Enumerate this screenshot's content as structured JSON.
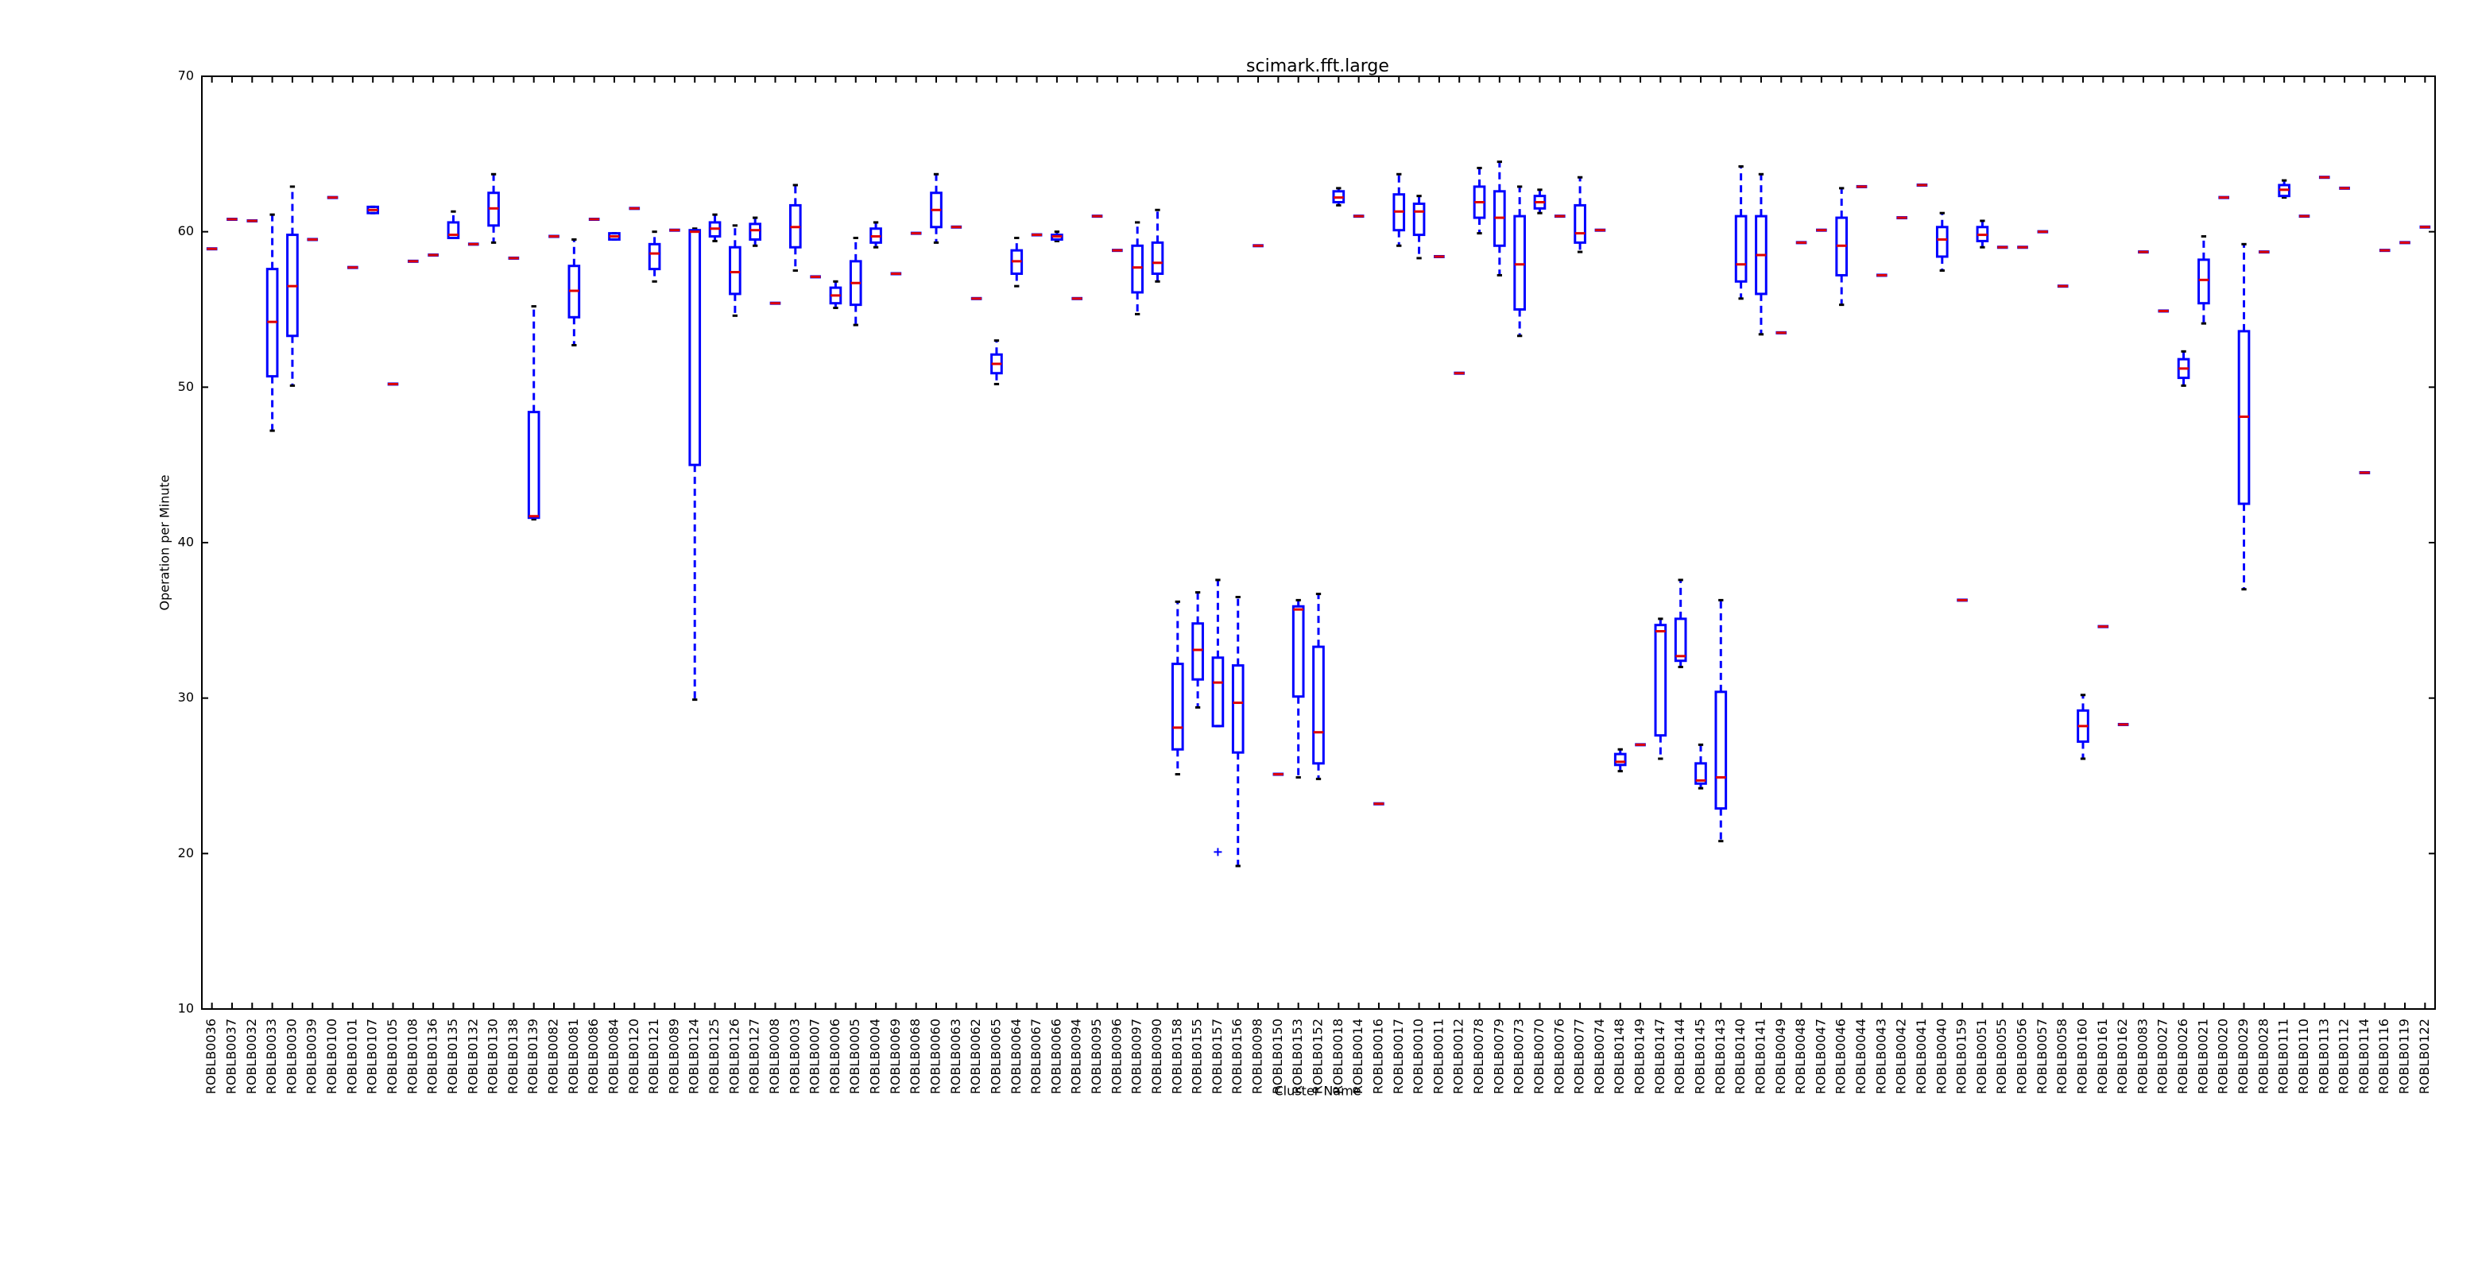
{
  "chart_data": {
    "type": "box",
    "title": "scimark.fft.large",
    "xlabel": "Cluster Name",
    "ylabel": "Operation per Minute",
    "ylim": [
      10,
      70
    ],
    "yticks": [
      10,
      20,
      30,
      40,
      50,
      60,
      70
    ],
    "categories": [
      "ROBLB0036",
      "ROBLB0037",
      "ROBLB0032",
      "ROBLB0033",
      "ROBLB0030",
      "ROBLB0039",
      "ROBLB0100",
      "ROBLB0101",
      "ROBLB0107",
      "ROBLB0105",
      "ROBLB0108",
      "ROBLB0136",
      "ROBLB0135",
      "ROBLB0132",
      "ROBLB0130",
      "ROBLB0138",
      "ROBLB0139",
      "ROBLB0082",
      "ROBLB0081",
      "ROBLB0086",
      "ROBLB0084",
      "ROBLB0120",
      "ROBLB0121",
      "ROBLB0089",
      "ROBLB0124",
      "ROBLB0125",
      "ROBLB0126",
      "ROBLB0127",
      "ROBLB0008",
      "ROBLB0003",
      "ROBLB0007",
      "ROBLB0006",
      "ROBLB0005",
      "ROBLB0004",
      "ROBLB0069",
      "ROBLB0068",
      "ROBLB0060",
      "ROBLB0063",
      "ROBLB0062",
      "ROBLB0065",
      "ROBLB0064",
      "ROBLB0067",
      "ROBLB0066",
      "ROBLB0094",
      "ROBLB0095",
      "ROBLB0096",
      "ROBLB0097",
      "ROBLB0090",
      "ROBLB0158",
      "ROBLB0155",
      "ROBLB0157",
      "ROBLB0156",
      "ROBLB0098",
      "ROBLB0150",
      "ROBLB0153",
      "ROBLB0152",
      "ROBLB0018",
      "ROBLB0014",
      "ROBLB0016",
      "ROBLB0017",
      "ROBLB0010",
      "ROBLB0011",
      "ROBLB0012",
      "ROBLB0078",
      "ROBLB0079",
      "ROBLB0073",
      "ROBLB0070",
      "ROBLB0076",
      "ROBLB0077",
      "ROBLB0074",
      "ROBLB0148",
      "ROBLB0149",
      "ROBLB0147",
      "ROBLB0144",
      "ROBLB0145",
      "ROBLB0143",
      "ROBLB0140",
      "ROBLB0141",
      "ROBLB0049",
      "ROBLB0048",
      "ROBLB0047",
      "ROBLB0046",
      "ROBLB0044",
      "ROBLB0043",
      "ROBLB0042",
      "ROBLB0041",
      "ROBLB0040",
      "ROBLB0159",
      "ROBLB0051",
      "ROBLB0055",
      "ROBLB0056",
      "ROBLB0057",
      "ROBLB0058",
      "ROBLB0160",
      "ROBLB0161",
      "ROBLB0162",
      "ROBLB0083",
      "ROBLB0027",
      "ROBLB0026",
      "ROBLB0021",
      "ROBLB0020",
      "ROBLB0029",
      "ROBLB0028",
      "ROBLB0111",
      "ROBLB0110",
      "ROBLB0113",
      "ROBLB0112",
      "ROBLB0114",
      "ROBLB0116",
      "ROBLB0119",
      "ROBLB0122"
    ],
    "boxes": [
      {
        "median": 58.9
      },
      {
        "median": 60.8
      },
      {
        "median": 60.7
      },
      {
        "min": 47.2,
        "q1": 50.7,
        "median": 54.2,
        "q3": 57.6,
        "max": 61.1
      },
      {
        "min": 50.1,
        "q1": 53.3,
        "median": 56.5,
        "q3": 59.8,
        "max": 62.9
      },
      {
        "median": 59.5
      },
      {
        "median": 62.2
      },
      {
        "median": 57.7
      },
      {
        "min": 61.2,
        "q1": 61.2,
        "median": 61.4,
        "q3": 61.6,
        "max": 61.6
      },
      {
        "median": 50.2
      },
      {
        "median": 58.1
      },
      {
        "median": 58.5
      },
      {
        "min": 59.6,
        "q1": 59.6,
        "median": 59.8,
        "q3": 60.6,
        "max": 61.3
      },
      {
        "median": 59.2
      },
      {
        "min": 59.3,
        "q1": 60.4,
        "median": 61.5,
        "q3": 62.5,
        "max": 63.7
      },
      {
        "median": 58.3
      },
      {
        "min": 41.5,
        "q1": 41.6,
        "median": 41.7,
        "q3": 48.4,
        "max": 55.2
      },
      {
        "median": 59.7
      },
      {
        "min": 52.7,
        "q1": 54.5,
        "median": 56.2,
        "q3": 57.8,
        "max": 59.5
      },
      {
        "median": 60.8
      },
      {
        "min": 59.5,
        "q1": 59.5,
        "median": 59.7,
        "q3": 59.9,
        "max": 59.9
      },
      {
        "median": 61.5
      },
      {
        "min": 56.8,
        "q1": 57.6,
        "median": 58.6,
        "q3": 59.2,
        "max": 60.0
      },
      {
        "median": 60.1
      },
      {
        "min": 29.9,
        "q1": 45.0,
        "median": 60.0,
        "q3": 60.1,
        "max": 60.2
      },
      {
        "min": 59.4,
        "q1": 59.7,
        "median": 60.2,
        "q3": 60.6,
        "max": 61.1
      },
      {
        "min": 54.6,
        "q1": 56.0,
        "median": 57.4,
        "q3": 59.0,
        "max": 60.4
      },
      {
        "min": 59.1,
        "q1": 59.5,
        "median": 60.1,
        "q3": 60.5,
        "max": 60.9
      },
      {
        "median": 55.4
      },
      {
        "min": 57.5,
        "q1": 59.0,
        "median": 60.3,
        "q3": 61.7,
        "max": 63.0
      },
      {
        "median": 57.1
      },
      {
        "min": 55.1,
        "q1": 55.4,
        "median": 55.9,
        "q3": 56.4,
        "max": 56.8
      },
      {
        "min": 54.0,
        "q1": 55.3,
        "median": 56.7,
        "q3": 58.1,
        "max": 59.6
      },
      {
        "min": 59.0,
        "q1": 59.3,
        "median": 59.7,
        "q3": 60.2,
        "max": 60.6
      },
      {
        "median": 57.3
      },
      {
        "median": 59.9
      },
      {
        "min": 59.3,
        "q1": 60.3,
        "median": 61.4,
        "q3": 62.5,
        "max": 63.7
      },
      {
        "median": 60.3
      },
      {
        "median": 55.7
      },
      {
        "min": 50.2,
        "q1": 50.9,
        "median": 51.5,
        "q3": 52.1,
        "max": 53.0
      },
      {
        "min": 56.5,
        "q1": 57.3,
        "median": 58.1,
        "q3": 58.8,
        "max": 59.6
      },
      {
        "median": 59.8
      },
      {
        "min": 59.4,
        "q1": 59.5,
        "median": 59.7,
        "q3": 59.8,
        "max": 60.0
      },
      {
        "median": 55.7
      },
      {
        "median": 61.0
      },
      {
        "median": 58.8
      },
      {
        "min": 54.7,
        "q1": 56.1,
        "median": 57.7,
        "q3": 59.1,
        "max": 60.6
      },
      {
        "min": 56.8,
        "q1": 57.3,
        "median": 58.0,
        "q3": 59.3,
        "max": 61.4
      },
      {
        "min": 25.1,
        "q1": 26.7,
        "median": 28.1,
        "q3": 32.2,
        "max": 36.2
      },
      {
        "min": 29.4,
        "q1": 31.2,
        "median": 33.1,
        "q3": 34.8,
        "max": 36.8
      },
      {
        "min": 28.2,
        "q1": 28.2,
        "median": 31.0,
        "q3": 32.6,
        "max": 37.6,
        "fliers": [
          20.1
        ]
      },
      {
        "min": 19.2,
        "q1": 26.5,
        "median": 29.7,
        "q3": 32.1,
        "max": 36.5
      },
      {
        "median": 59.1
      },
      {
        "median": 25.1
      },
      {
        "min": 24.9,
        "q1": 30.1,
        "median": 35.7,
        "q3": 35.9,
        "max": 36.3
      },
      {
        "min": 24.8,
        "q1": 25.8,
        "median": 27.8,
        "q3": 33.3,
        "max": 36.7
      },
      {
        "min": 61.7,
        "q1": 61.9,
        "median": 62.2,
        "q3": 62.6,
        "max": 62.8
      },
      {
        "median": 61.0
      },
      {
        "median": 23.2
      },
      {
        "min": 59.1,
        "q1": 60.1,
        "median": 61.3,
        "q3": 62.4,
        "max": 63.7
      },
      {
        "min": 58.3,
        "q1": 59.8,
        "median": 61.3,
        "q3": 61.8,
        "max": 62.3
      },
      {
        "median": 58.4
      },
      {
        "median": 50.9
      },
      {
        "min": 59.9,
        "q1": 60.9,
        "median": 61.9,
        "q3": 62.9,
        "max": 64.1
      },
      {
        "min": 57.2,
        "q1": 59.1,
        "median": 60.9,
        "q3": 62.6,
        "max": 64.5
      },
      {
        "min": 53.3,
        "q1": 55.0,
        "median": 57.9,
        "q3": 61.0,
        "max": 62.9
      },
      {
        "min": 61.2,
        "q1": 61.5,
        "median": 61.9,
        "q3": 62.3,
        "max": 62.7
      },
      {
        "median": 61.0
      },
      {
        "min": 58.7,
        "q1": 59.3,
        "median": 59.9,
        "q3": 61.7,
        "max": 63.5
      },
      {
        "median": 60.1
      },
      {
        "min": 25.3,
        "q1": 25.7,
        "median": 25.9,
        "q3": 26.4,
        "max": 26.7
      },
      {
        "median": 27.0
      },
      {
        "min": 26.1,
        "q1": 27.6,
        "median": 34.3,
        "q3": 34.7,
        "max": 35.1
      },
      {
        "min": 32.0,
        "q1": 32.4,
        "median": 32.7,
        "q3": 35.1,
        "max": 37.6
      },
      {
        "min": 24.2,
        "q1": 24.5,
        "median": 24.7,
        "q3": 25.8,
        "max": 27.0
      },
      {
        "min": 20.8,
        "q1": 22.9,
        "median": 24.9,
        "q3": 30.4,
        "max": 36.3
      },
      {
        "min": 55.7,
        "q1": 56.8,
        "median": 57.9,
        "q3": 61.0,
        "max": 64.2
      },
      {
        "min": 53.4,
        "q1": 56.0,
        "median": 58.5,
        "q3": 61.0,
        "max": 63.7
      },
      {
        "median": 53.5
      },
      {
        "median": 59.3
      },
      {
        "median": 60.1
      },
      {
        "min": 55.3,
        "q1": 57.2,
        "median": 59.1,
        "q3": 60.9,
        "max": 62.8
      },
      {
        "median": 62.9
      },
      {
        "median": 57.2
      },
      {
        "median": 60.9
      },
      {
        "median": 63.0
      },
      {
        "min": 57.5,
        "q1": 58.4,
        "median": 59.5,
        "q3": 60.3,
        "max": 61.2
      },
      {
        "median": 36.3
      },
      {
        "min": 59.0,
        "q1": 59.4,
        "median": 59.8,
        "q3": 60.3,
        "max": 60.7
      },
      {
        "median": 59.0
      },
      {
        "median": 59.0
      },
      {
        "median": 60.0
      },
      {
        "median": 56.5
      },
      {
        "min": 26.1,
        "q1": 27.2,
        "median": 28.2,
        "q3": 29.2,
        "max": 30.2
      },
      {
        "median": 34.6
      },
      {
        "median": 28.3
      },
      {
        "median": 58.7
      },
      {
        "median": 54.9
      },
      {
        "min": 50.1,
        "q1": 50.6,
        "median": 51.2,
        "q3": 51.8,
        "max": 52.3
      },
      {
        "min": 54.1,
        "q1": 55.4,
        "median": 56.9,
        "q3": 58.2,
        "max": 59.7
      },
      {
        "median": 62.2
      },
      {
        "min": 37.0,
        "q1": 42.5,
        "median": 48.1,
        "q3": 53.6,
        "max": 59.2
      },
      {
        "median": 58.7
      },
      {
        "min": 62.2,
        "q1": 62.3,
        "median": 62.7,
        "q3": 63.0,
        "max": 63.3
      },
      {
        "median": 61.0
      },
      {
        "median": 63.5
      },
      {
        "median": 62.8
      },
      {
        "median": 44.5
      },
      {
        "median": 58.8
      },
      {
        "median": 59.3
      },
      {
        "median": 60.3
      }
    ]
  }
}
